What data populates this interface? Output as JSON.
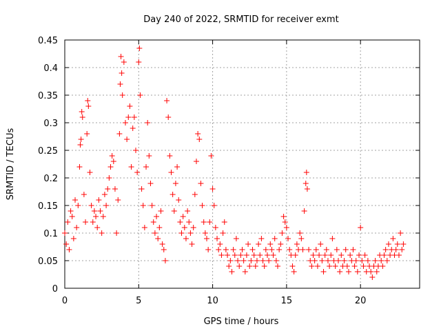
{
  "chart_data": {
    "type": "scatter",
    "title": "Day 240 of 2022, SRMTID for receiver exmt",
    "xlabel": "GPS time / hours",
    "ylabel": "SRMTID / TECUs",
    "xlim": [
      0,
      24
    ],
    "ylim": [
      0,
      0.45
    ],
    "xticks": [
      0,
      5,
      10,
      15,
      20
    ],
    "yticks": [
      0,
      0.05,
      0.1,
      0.15,
      0.2,
      0.25,
      0.3,
      0.35,
      0.4,
      0.45
    ],
    "xtick_labels": [
      "0",
      "5",
      "10",
      "15",
      "20"
    ],
    "ytick_labels": [
      "0",
      "0.05",
      "0.1",
      "0.15",
      "0.2",
      "0.25",
      "0.3",
      "0.35",
      "0.4",
      "0.45"
    ],
    "grid": true,
    "marker": "+",
    "marker_color": "#ff0000",
    "x_range_of_data": [
      0,
      22.9
    ],
    "series": [
      {
        "name": "SRMTID",
        "points": [
          [
            0.0,
            0.1
          ],
          [
            0.1,
            0.08
          ],
          [
            0.2,
            0.12
          ],
          [
            0.3,
            0.07
          ],
          [
            0.4,
            0.14
          ],
          [
            0.5,
            0.13
          ],
          [
            0.6,
            0.09
          ],
          [
            0.7,
            0.16
          ],
          [
            0.8,
            0.11
          ],
          [
            0.9,
            0.15
          ],
          [
            1.0,
            0.22
          ],
          [
            1.05,
            0.26
          ],
          [
            1.1,
            0.27
          ],
          [
            1.15,
            0.32
          ],
          [
            1.2,
            0.31
          ],
          [
            1.3,
            0.17
          ],
          [
            1.4,
            0.12
          ],
          [
            1.5,
            0.28
          ],
          [
            1.55,
            0.34
          ],
          [
            1.6,
            0.33
          ],
          [
            1.7,
            0.21
          ],
          [
            1.8,
            0.15
          ],
          [
            1.9,
            0.12
          ],
          [
            2.0,
            0.14
          ],
          [
            2.1,
            0.13
          ],
          [
            2.2,
            0.11
          ],
          [
            2.3,
            0.16
          ],
          [
            2.4,
            0.14
          ],
          [
            2.5,
            0.1
          ],
          [
            2.6,
            0.13
          ],
          [
            2.7,
            0.17
          ],
          [
            2.8,
            0.15
          ],
          [
            2.9,
            0.18
          ],
          [
            3.0,
            0.2
          ],
          [
            3.1,
            0.22
          ],
          [
            3.2,
            0.24
          ],
          [
            3.3,
            0.23
          ],
          [
            3.4,
            0.18
          ],
          [
            3.5,
            0.1
          ],
          [
            3.6,
            0.16
          ],
          [
            3.7,
            0.28
          ],
          [
            3.75,
            0.37
          ],
          [
            3.8,
            0.42
          ],
          [
            3.85,
            0.39
          ],
          [
            3.9,
            0.35
          ],
          [
            4.0,
            0.41
          ],
          [
            4.1,
            0.3
          ],
          [
            4.2,
            0.27
          ],
          [
            4.3,
            0.31
          ],
          [
            4.4,
            0.33
          ],
          [
            4.5,
            0.22
          ],
          [
            4.6,
            0.29
          ],
          [
            4.7,
            0.31
          ],
          [
            4.8,
            0.25
          ],
          [
            4.9,
            0.21
          ],
          [
            5.0,
            0.41
          ],
          [
            5.05,
            0.435
          ],
          [
            5.1,
            0.35
          ],
          [
            5.2,
            0.18
          ],
          [
            5.3,
            0.15
          ],
          [
            5.4,
            0.11
          ],
          [
            5.5,
            0.22
          ],
          [
            5.6,
            0.3
          ],
          [
            5.7,
            0.24
          ],
          [
            5.8,
            0.19
          ],
          [
            5.9,
            0.15
          ],
          [
            6.0,
            0.12
          ],
          [
            6.1,
            0.1
          ],
          [
            6.2,
            0.13
          ],
          [
            6.3,
            0.09
          ],
          [
            6.4,
            0.11
          ],
          [
            6.5,
            0.14
          ],
          [
            6.6,
            0.08
          ],
          [
            6.7,
            0.07
          ],
          [
            6.8,
            0.05
          ],
          [
            6.9,
            0.34
          ],
          [
            7.0,
            0.31
          ],
          [
            7.1,
            0.24
          ],
          [
            7.2,
            0.21
          ],
          [
            7.3,
            0.17
          ],
          [
            7.4,
            0.14
          ],
          [
            7.5,
            0.19
          ],
          [
            7.6,
            0.22
          ],
          [
            7.7,
            0.16
          ],
          [
            7.8,
            0.12
          ],
          [
            7.9,
            0.1
          ],
          [
            8.0,
            0.13
          ],
          [
            8.1,
            0.11
          ],
          [
            8.2,
            0.09
          ],
          [
            8.3,
            0.14
          ],
          [
            8.4,
            0.12
          ],
          [
            8.5,
            0.1
          ],
          [
            8.6,
            0.08
          ],
          [
            8.7,
            0.11
          ],
          [
            8.8,
            0.17
          ],
          [
            8.9,
            0.23
          ],
          [
            9.0,
            0.28
          ],
          [
            9.1,
            0.27
          ],
          [
            9.2,
            0.19
          ],
          [
            9.3,
            0.15
          ],
          [
            9.4,
            0.12
          ],
          [
            9.5,
            0.1
          ],
          [
            9.6,
            0.09
          ],
          [
            9.7,
            0.07
          ],
          [
            9.8,
            0.12
          ],
          [
            9.9,
            0.24
          ],
          [
            10.0,
            0.18
          ],
          [
            10.1,
            0.15
          ],
          [
            10.2,
            0.11
          ],
          [
            10.3,
            0.09
          ],
          [
            10.4,
            0.07
          ],
          [
            10.5,
            0.08
          ],
          [
            10.6,
            0.06
          ],
          [
            10.7,
            0.1
          ],
          [
            10.8,
            0.12
          ],
          [
            10.9,
            0.07
          ],
          [
            11.0,
            0.06
          ],
          [
            11.1,
            0.04
          ],
          [
            11.2,
            0.05
          ],
          [
            11.3,
            0.03
          ],
          [
            11.4,
            0.07
          ],
          [
            11.5,
            0.06
          ],
          [
            11.6,
            0.09
          ],
          [
            11.7,
            0.05
          ],
          [
            11.8,
            0.04
          ],
          [
            11.9,
            0.06
          ],
          [
            12.0,
            0.07
          ],
          [
            12.1,
            0.05
          ],
          [
            12.2,
            0.03
          ],
          [
            12.3,
            0.06
          ],
          [
            12.4,
            0.08
          ],
          [
            12.5,
            0.04
          ],
          [
            12.6,
            0.05
          ],
          [
            12.7,
            0.07
          ],
          [
            12.8,
            0.06
          ],
          [
            12.9,
            0.04
          ],
          [
            13.0,
            0.05
          ],
          [
            13.1,
            0.08
          ],
          [
            13.2,
            0.06
          ],
          [
            13.3,
            0.09
          ],
          [
            13.4,
            0.05
          ],
          [
            13.5,
            0.04
          ],
          [
            13.6,
            0.07
          ],
          [
            13.7,
            0.06
          ],
          [
            13.8,
            0.05
          ],
          [
            13.9,
            0.08
          ],
          [
            14.0,
            0.07
          ],
          [
            14.1,
            0.06
          ],
          [
            14.2,
            0.09
          ],
          [
            14.3,
            0.05
          ],
          [
            14.4,
            0.04
          ],
          [
            14.5,
            0.07
          ],
          [
            14.6,
            0.08
          ],
          [
            14.7,
            0.1
          ],
          [
            14.8,
            0.13
          ],
          [
            14.9,
            0.12
          ],
          [
            15.0,
            0.11
          ],
          [
            15.1,
            0.09
          ],
          [
            15.2,
            0.07
          ],
          [
            15.3,
            0.06
          ],
          [
            15.4,
            0.04
          ],
          [
            15.5,
            0.03
          ],
          [
            15.6,
            0.06
          ],
          [
            15.7,
            0.08
          ],
          [
            15.8,
            0.07
          ],
          [
            15.9,
            0.1
          ],
          [
            16.0,
            0.09
          ],
          [
            16.1,
            0.07
          ],
          [
            16.2,
            0.14
          ],
          [
            16.3,
            0.19
          ],
          [
            16.35,
            0.21
          ],
          [
            16.4,
            0.18
          ],
          [
            16.5,
            0.07
          ],
          [
            16.6,
            0.05
          ],
          [
            16.7,
            0.04
          ],
          [
            16.8,
            0.06
          ],
          [
            16.9,
            0.05
          ],
          [
            17.0,
            0.07
          ],
          [
            17.1,
            0.04
          ],
          [
            17.2,
            0.06
          ],
          [
            17.3,
            0.08
          ],
          [
            17.4,
            0.05
          ],
          [
            17.5,
            0.03
          ],
          [
            17.6,
            0.06
          ],
          [
            17.7,
            0.07
          ],
          [
            17.8,
            0.05
          ],
          [
            17.9,
            0.04
          ],
          [
            18.0,
            0.06
          ],
          [
            18.1,
            0.09
          ],
          [
            18.2,
            0.05
          ],
          [
            18.3,
            0.04
          ],
          [
            18.4,
            0.07
          ],
          [
            18.5,
            0.05
          ],
          [
            18.6,
            0.03
          ],
          [
            18.7,
            0.06
          ],
          [
            18.8,
            0.04
          ],
          [
            18.9,
            0.05
          ],
          [
            19.0,
            0.07
          ],
          [
            19.1,
            0.04
          ],
          [
            19.2,
            0.03
          ],
          [
            19.3,
            0.06
          ],
          [
            19.4,
            0.05
          ],
          [
            19.5,
            0.07
          ],
          [
            19.6,
            0.04
          ],
          [
            19.7,
            0.05
          ],
          [
            19.8,
            0.03
          ],
          [
            19.9,
            0.06
          ],
          [
            20.0,
            0.11
          ],
          [
            20.1,
            0.05
          ],
          [
            20.2,
            0.04
          ],
          [
            20.3,
            0.06
          ],
          [
            20.4,
            0.03
          ],
          [
            20.5,
            0.05
          ],
          [
            20.6,
            0.04
          ],
          [
            20.7,
            0.03
          ],
          [
            20.8,
            0.02
          ],
          [
            20.9,
            0.04
          ],
          [
            21.0,
            0.05
          ],
          [
            21.1,
            0.03
          ],
          [
            21.2,
            0.04
          ],
          [
            21.3,
            0.06
          ],
          [
            21.4,
            0.05
          ],
          [
            21.5,
            0.04
          ],
          [
            21.6,
            0.06
          ],
          [
            21.7,
            0.07
          ],
          [
            21.8,
            0.05
          ],
          [
            21.9,
            0.08
          ],
          [
            22.0,
            0.06
          ],
          [
            22.1,
            0.07
          ],
          [
            22.2,
            0.09
          ],
          [
            22.3,
            0.06
          ],
          [
            22.4,
            0.07
          ],
          [
            22.5,
            0.08
          ],
          [
            22.6,
            0.06
          ],
          [
            22.7,
            0.1
          ],
          [
            22.8,
            0.07
          ],
          [
            22.9,
            0.08
          ]
        ]
      }
    ]
  }
}
